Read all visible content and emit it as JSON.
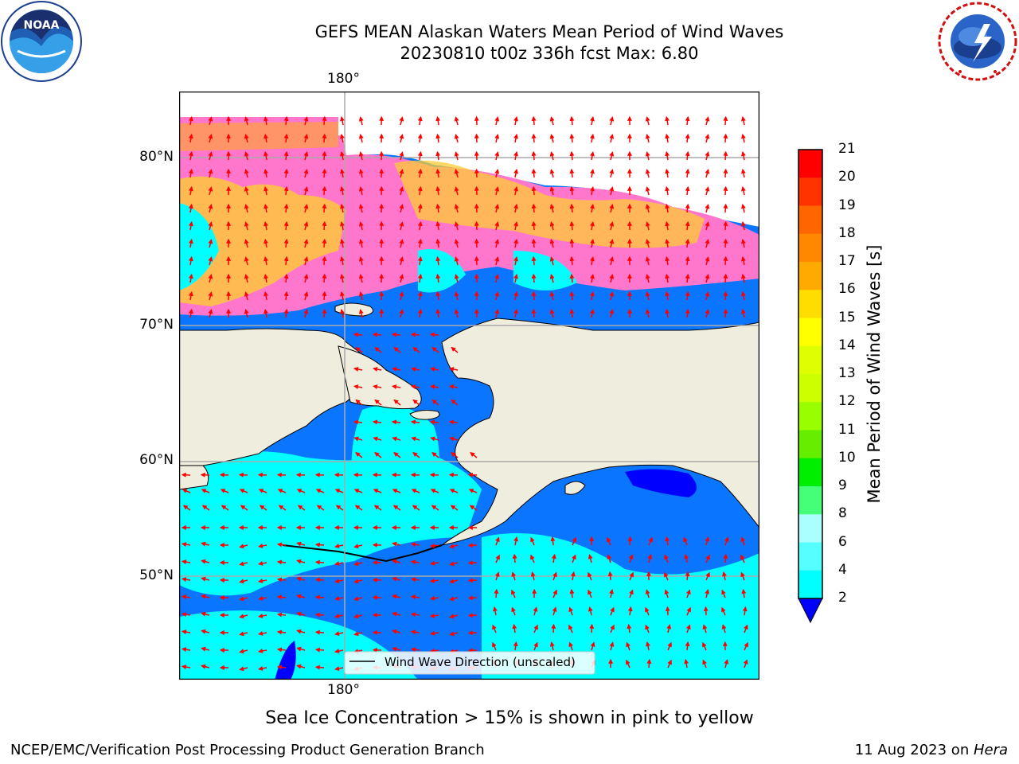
{
  "header": {
    "title_line1": "GEFS MEAN Alaskan Waters Mean Period of Wind Waves",
    "title_line2": "20230810 t00z 336h fcst   Max: 6.80"
  },
  "logos": {
    "left": "noaa-logo",
    "right": "nws-logo"
  },
  "map": {
    "lon_label_top": "180°",
    "lon_label_bottom": "180°",
    "lat_labels": [
      "80°N",
      "70°N",
      "60°N",
      "50°N"
    ],
    "legend_label": "Wind Wave Direction (unscaled)",
    "colors": {
      "land": "#efeddd",
      "water_low": "#0a76ff",
      "water_mid": "#00ffff",
      "deep_blue": "#0000ff",
      "ice_pink": "#ff77cc",
      "ice_yellow": "#ffcc33",
      "arrow": "#ff0000"
    }
  },
  "colorbar": {
    "label": "Mean Period of Wind Waves [s]",
    "ticks": [
      "21",
      "20",
      "19",
      "18",
      "17",
      "16",
      "15",
      "14",
      "13",
      "12",
      "11",
      "10",
      "9",
      "8",
      "6",
      "4",
      "2"
    ],
    "colors": [
      "#ff0000",
      "#ff3300",
      "#ff6600",
      "#ff8800",
      "#ffaa00",
      "#ffdd00",
      "#ffff00",
      "#ddff00",
      "#ccff00",
      "#99ff00",
      "#66ee00",
      "#00ee00",
      "#44ff77",
      "#aaffff",
      "#55ffff",
      "#00ffff",
      "#0a76ff"
    ],
    "under_color": "#0000ff"
  },
  "caption": "Sea Ice Concentration > 15% is shown in pink to yellow",
  "footer": {
    "left": "NCEP/EMC/Verification Post Processing Product Generation Branch",
    "date": "11 Aug 2023 on ",
    "machine": "Hera"
  }
}
